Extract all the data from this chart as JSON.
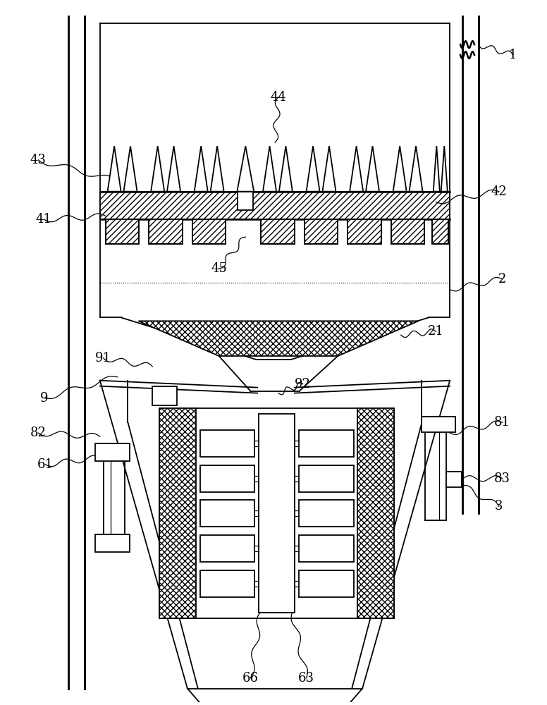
{
  "bg_color": "#ffffff",
  "line_color": "#000000",
  "fig_width": 7.76,
  "fig_height": 10.0
}
